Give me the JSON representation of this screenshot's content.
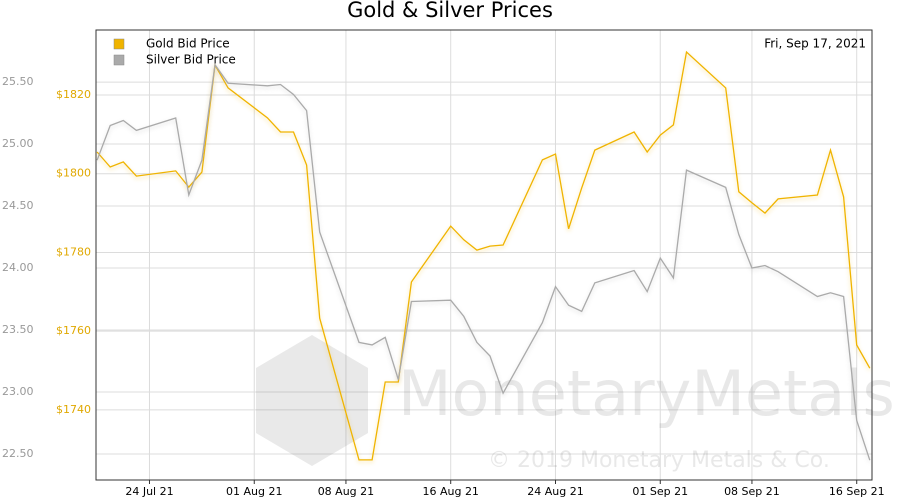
{
  "chart_data": {
    "type": "line",
    "title": "Gold & Silver Prices",
    "date_label": "Fri, Sep 17, 2021",
    "watermark": "MonetaryMetals",
    "watermark_subtitle": "© 2019 Monetary Metals & Co.",
    "x": [
      "2021-07-20",
      "2021-07-21",
      "2021-07-22",
      "2021-07-23",
      "2021-07-26",
      "2021-07-27",
      "2021-07-28",
      "2021-07-29",
      "2021-07-30",
      "2021-08-02",
      "2021-08-03",
      "2021-08-04",
      "2021-08-05",
      "2021-08-06",
      "2021-08-09",
      "2021-08-10",
      "2021-08-11",
      "2021-08-12",
      "2021-08-13",
      "2021-08-16",
      "2021-08-17",
      "2021-08-18",
      "2021-08-19",
      "2021-08-20",
      "2021-08-23",
      "2021-08-24",
      "2021-08-25",
      "2021-08-26",
      "2021-08-27",
      "2021-08-30",
      "2021-08-31",
      "2021-09-01",
      "2021-09-02",
      "2021-09-03",
      "2021-09-06",
      "2021-09-07",
      "2021-09-08",
      "2021-09-09",
      "2021-09-10",
      "2021-09-13",
      "2021-09-14",
      "2021-09-15",
      "2021-09-16",
      "2021-09-17"
    ],
    "xlim": [
      "2021-07-19T22:00",
      "2021-09-17T04:00"
    ],
    "xticks": [
      {
        "value": "2021-07-24",
        "label": "24 Jul 21"
      },
      {
        "value": "2021-08-01",
        "label": "01 Aug 21"
      },
      {
        "value": "2021-08-08",
        "label": "08 Aug 21"
      },
      {
        "value": "2021-08-16",
        "label": "16 Aug 21"
      },
      {
        "value": "2021-08-24",
        "label": "24 Aug 21"
      },
      {
        "value": "2021-09-01",
        "label": "01 Sep 21"
      },
      {
        "value": "2021-09-08",
        "label": "08 Sep 21"
      },
      {
        "value": "2021-09-16",
        "label": "16 Sep 21"
      }
    ],
    "ylim": [
      22.29,
      25.92
    ],
    "yticks": [
      {
        "value": 22.5,
        "label": "22.50"
      },
      {
        "value": 23,
        "label": "23.00"
      },
      {
        "value": 23.5,
        "label": "23.50"
      },
      {
        "value": 24,
        "label": "24.00"
      },
      {
        "value": 24.5,
        "label": "24.50"
      },
      {
        "value": 25,
        "label": "25.00"
      },
      {
        "value": 25.5,
        "label": "25.50"
      }
    ],
    "y2lim": [
      1722.2,
      1836.5
    ],
    "y2ticks": [
      {
        "value": 1740,
        "label": "$1740"
      },
      {
        "value": 1760,
        "label": "$1760"
      },
      {
        "value": 1780,
        "label": "$1780"
      },
      {
        "value": 1800,
        "label": "$1800"
      },
      {
        "value": 1820,
        "label": "$1820"
      }
    ],
    "y2_color": "#e0a800",
    "y_color": "#999999",
    "grid": true,
    "series": [
      {
        "name": "Gold Bid Price",
        "color": "#f0b400",
        "axis": "y2",
        "values": [
          1805.5,
          1801.7,
          1803.0,
          1799.4,
          1800.7,
          1796.6,
          1800.4,
          1827.6,
          1821.8,
          1814.2,
          1810.6,
          1810.6,
          1802.2,
          1763.3,
          1727.3,
          1727.3,
          1747.1,
          1747.1,
          1772.5,
          1786.7,
          1783.2,
          1780.6,
          1781.6,
          1781.9,
          1803.5,
          1805.0,
          1786.0,
          1796.4,
          1806.0,
          1810.6,
          1805.5,
          1809.8,
          1812.4,
          1830.9,
          1821.8,
          1795.4,
          1792.6,
          1790.0,
          1793.6,
          1794.6,
          1806.0,
          1794.1,
          1756.5,
          1750.6
        ]
      },
      {
        "name": "Silver Bid Price",
        "color": "#aaaaaa",
        "axis": "y",
        "values": [
          24.87,
          25.15,
          25.19,
          25.11,
          25.21,
          24.59,
          24.87,
          25.64,
          25.49,
          25.47,
          25.48,
          25.4,
          25.27,
          24.29,
          23.4,
          23.38,
          23.44,
          23.1,
          23.73,
          23.74,
          23.61,
          23.4,
          23.29,
          22.99,
          23.56,
          23.85,
          23.7,
          23.65,
          23.88,
          23.98,
          23.81,
          24.08,
          23.92,
          24.79,
          24.65,
          24.27,
          24.0,
          24.02,
          23.97,
          23.77,
          23.8,
          23.77,
          22.77,
          22.45
        ]
      }
    ]
  }
}
